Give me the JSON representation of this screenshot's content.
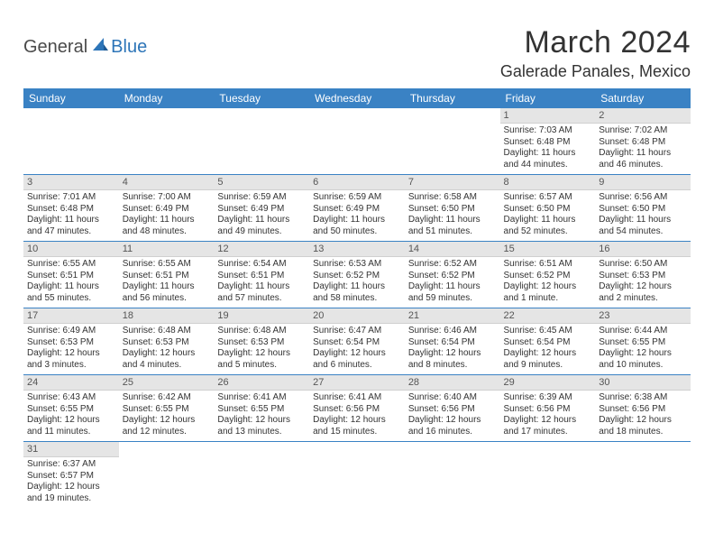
{
  "logo": {
    "text1": "General",
    "text2": "Blue"
  },
  "title": "March 2024",
  "location": "Galerade Panales, Mexico",
  "colors": {
    "header_bg": "#3a82c4",
    "header_text": "#ffffff",
    "daynum_bg": "#e5e5e5",
    "border": "#3a82c4",
    "logo_blue": "#2d75b8"
  },
  "weekdays": [
    "Sunday",
    "Monday",
    "Tuesday",
    "Wednesday",
    "Thursday",
    "Friday",
    "Saturday"
  ],
  "first_weekday_index": 5,
  "days": [
    {
      "n": 1,
      "sunrise": "7:03 AM",
      "sunset": "6:48 PM",
      "daylight": "11 hours and 44 minutes."
    },
    {
      "n": 2,
      "sunrise": "7:02 AM",
      "sunset": "6:48 PM",
      "daylight": "11 hours and 46 minutes."
    },
    {
      "n": 3,
      "sunrise": "7:01 AM",
      "sunset": "6:48 PM",
      "daylight": "11 hours and 47 minutes."
    },
    {
      "n": 4,
      "sunrise": "7:00 AM",
      "sunset": "6:49 PM",
      "daylight": "11 hours and 48 minutes."
    },
    {
      "n": 5,
      "sunrise": "6:59 AM",
      "sunset": "6:49 PM",
      "daylight": "11 hours and 49 minutes."
    },
    {
      "n": 6,
      "sunrise": "6:59 AM",
      "sunset": "6:49 PM",
      "daylight": "11 hours and 50 minutes."
    },
    {
      "n": 7,
      "sunrise": "6:58 AM",
      "sunset": "6:50 PM",
      "daylight": "11 hours and 51 minutes."
    },
    {
      "n": 8,
      "sunrise": "6:57 AM",
      "sunset": "6:50 PM",
      "daylight": "11 hours and 52 minutes."
    },
    {
      "n": 9,
      "sunrise": "6:56 AM",
      "sunset": "6:50 PM",
      "daylight": "11 hours and 54 minutes."
    },
    {
      "n": 10,
      "sunrise": "6:55 AM",
      "sunset": "6:51 PM",
      "daylight": "11 hours and 55 minutes."
    },
    {
      "n": 11,
      "sunrise": "6:55 AM",
      "sunset": "6:51 PM",
      "daylight": "11 hours and 56 minutes."
    },
    {
      "n": 12,
      "sunrise": "6:54 AM",
      "sunset": "6:51 PM",
      "daylight": "11 hours and 57 minutes."
    },
    {
      "n": 13,
      "sunrise": "6:53 AM",
      "sunset": "6:52 PM",
      "daylight": "11 hours and 58 minutes."
    },
    {
      "n": 14,
      "sunrise": "6:52 AM",
      "sunset": "6:52 PM",
      "daylight": "11 hours and 59 minutes."
    },
    {
      "n": 15,
      "sunrise": "6:51 AM",
      "sunset": "6:52 PM",
      "daylight": "12 hours and 1 minute."
    },
    {
      "n": 16,
      "sunrise": "6:50 AM",
      "sunset": "6:53 PM",
      "daylight": "12 hours and 2 minutes."
    },
    {
      "n": 17,
      "sunrise": "6:49 AM",
      "sunset": "6:53 PM",
      "daylight": "12 hours and 3 minutes."
    },
    {
      "n": 18,
      "sunrise": "6:48 AM",
      "sunset": "6:53 PM",
      "daylight": "12 hours and 4 minutes."
    },
    {
      "n": 19,
      "sunrise": "6:48 AM",
      "sunset": "6:53 PM",
      "daylight": "12 hours and 5 minutes."
    },
    {
      "n": 20,
      "sunrise": "6:47 AM",
      "sunset": "6:54 PM",
      "daylight": "12 hours and 6 minutes."
    },
    {
      "n": 21,
      "sunrise": "6:46 AM",
      "sunset": "6:54 PM",
      "daylight": "12 hours and 8 minutes."
    },
    {
      "n": 22,
      "sunrise": "6:45 AM",
      "sunset": "6:54 PM",
      "daylight": "12 hours and 9 minutes."
    },
    {
      "n": 23,
      "sunrise": "6:44 AM",
      "sunset": "6:55 PM",
      "daylight": "12 hours and 10 minutes."
    },
    {
      "n": 24,
      "sunrise": "6:43 AM",
      "sunset": "6:55 PM",
      "daylight": "12 hours and 11 minutes."
    },
    {
      "n": 25,
      "sunrise": "6:42 AM",
      "sunset": "6:55 PM",
      "daylight": "12 hours and 12 minutes."
    },
    {
      "n": 26,
      "sunrise": "6:41 AM",
      "sunset": "6:55 PM",
      "daylight": "12 hours and 13 minutes."
    },
    {
      "n": 27,
      "sunrise": "6:41 AM",
      "sunset": "6:56 PM",
      "daylight": "12 hours and 15 minutes."
    },
    {
      "n": 28,
      "sunrise": "6:40 AM",
      "sunset": "6:56 PM",
      "daylight": "12 hours and 16 minutes."
    },
    {
      "n": 29,
      "sunrise": "6:39 AM",
      "sunset": "6:56 PM",
      "daylight": "12 hours and 17 minutes."
    },
    {
      "n": 30,
      "sunrise": "6:38 AM",
      "sunset": "6:56 PM",
      "daylight": "12 hours and 18 minutes."
    },
    {
      "n": 31,
      "sunrise": "6:37 AM",
      "sunset": "6:57 PM",
      "daylight": "12 hours and 19 minutes."
    }
  ],
  "labels": {
    "sunrise": "Sunrise:",
    "sunset": "Sunset:",
    "daylight": "Daylight:"
  }
}
